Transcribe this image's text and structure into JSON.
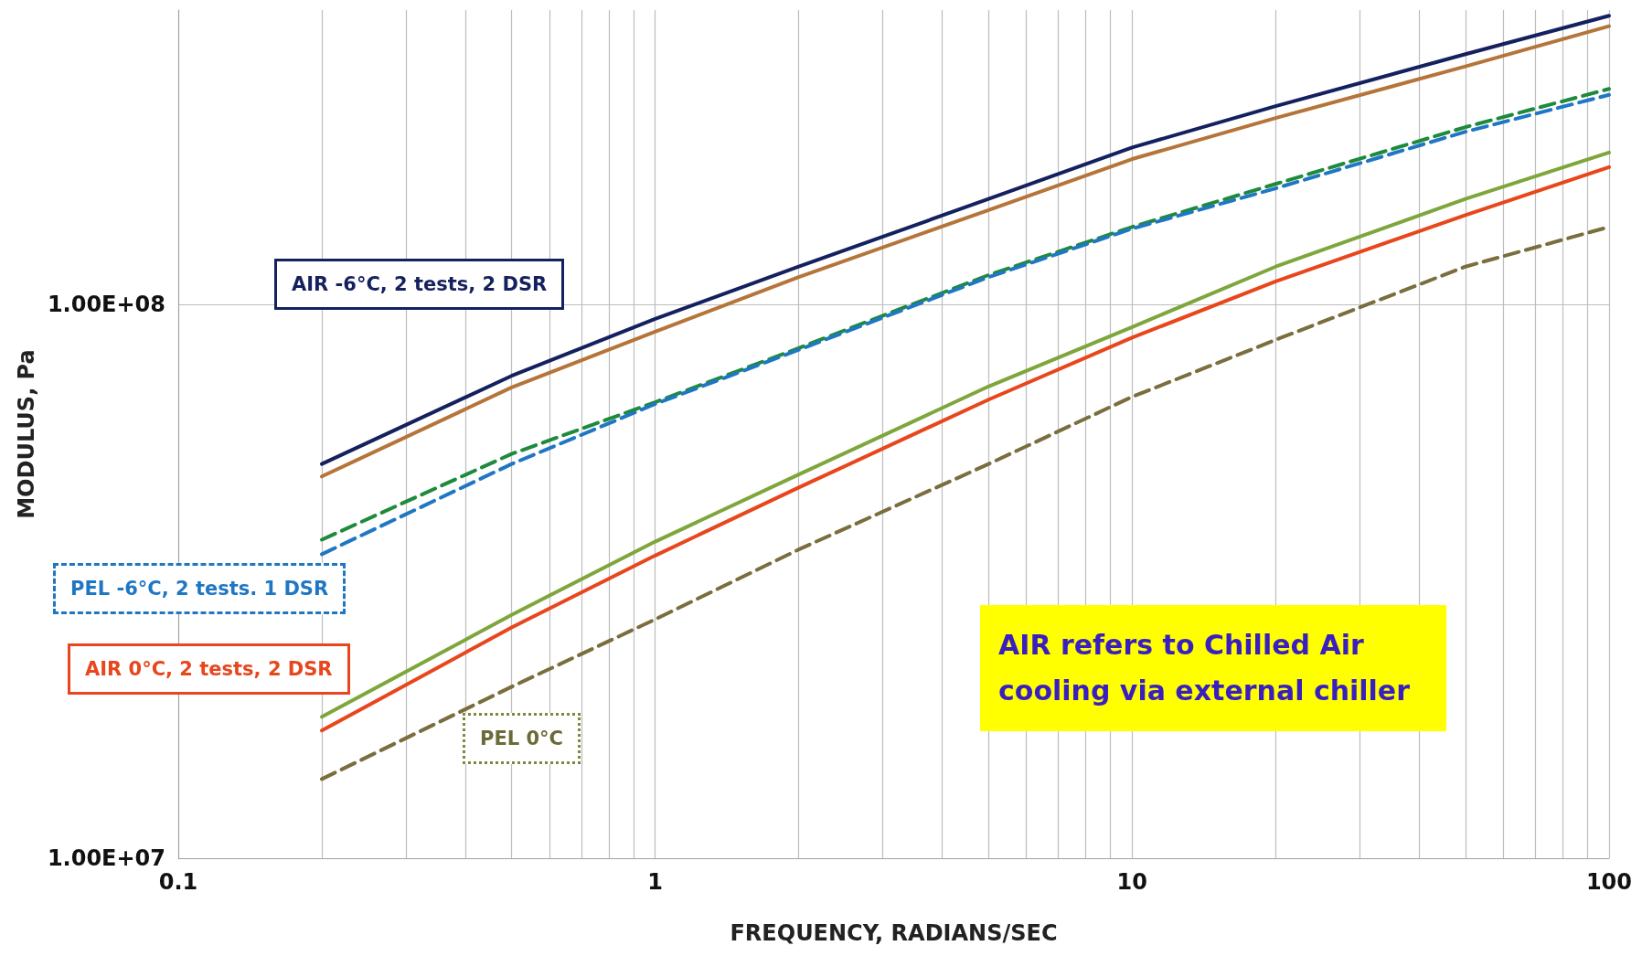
{
  "chart_data": {
    "type": "line",
    "xlabel": "FREQUENCY, RADIANS/SEC",
    "ylabel": "MODULUS, Pa",
    "log": "xy",
    "grid": true,
    "marker": "none",
    "xlim": [
      0.1,
      100
    ],
    "ylim": [
      10000000,
      340000000
    ],
    "xticks": [
      0.1,
      {
        "value": 0.2,
        "label": null
      },
      {
        "value": 0.3,
        "label": null
      },
      {
        "value": 0.4,
        "label": null
      },
      {
        "value": 0.5,
        "label": null
      },
      {
        "value": 0.6,
        "label": null
      },
      {
        "value": 0.7,
        "label": null
      },
      {
        "value": 0.8,
        "label": null
      },
      {
        "value": 0.9,
        "label": null
      },
      1,
      {
        "value": 2,
        "label": null
      },
      {
        "value": 3,
        "label": null
      },
      {
        "value": 4,
        "label": null
      },
      {
        "value": 5,
        "label": null
      },
      {
        "value": 6,
        "label": null
      },
      {
        "value": 7,
        "label": null
      },
      {
        "value": 8,
        "label": null
      },
      {
        "value": 9,
        "label": null
      },
      10,
      {
        "value": 20,
        "label": null
      },
      {
        "value": 30,
        "label": null
      },
      {
        "value": 40,
        "label": null
      },
      {
        "value": 50,
        "label": null
      },
      {
        "value": 60,
        "label": null
      },
      {
        "value": 70,
        "label": null
      },
      {
        "value": 80,
        "label": null
      },
      {
        "value": 90,
        "label": null
      },
      100
    ],
    "yticks": [
      {
        "value": 10000000,
        "label": "1.00E+07"
      },
      {
        "value": 100000000,
        "label": "1.00E+08"
      }
    ],
    "x": [
      0.2,
      0.5,
      1,
      2,
      5,
      10,
      20,
      50,
      100
    ],
    "series": [
      {
        "color": "#15215e",
        "line_style": "solid",
        "values": [
          51500000,
          74300000,
          94200000,
          117000000,
          155000000,
          192000000,
          228000000,
          283000000,
          332000000
        ]
      },
      {
        "color": "#b5753a",
        "line_style": "solid",
        "values": [
          48900000,
          70800000,
          89300000,
          112000000,
          148000000,
          183000000,
          217000000,
          269000000,
          318000000
        ]
      },
      {
        "color": "#1e8a3c",
        "line_style": "dashed",
        "values": [
          37600000,
          53700000,
          66600000,
          83400000,
          113000000,
          138000000,
          165000000,
          209000000,
          245000000
        ]
      },
      {
        "color": "#1f77c4",
        "line_style": "dashed",
        "values": [
          35400000,
          51500000,
          66100000,
          82800000,
          112000000,
          137000000,
          162000000,
          205000000,
          239000000
        ]
      },
      {
        "color": "#7ea63c",
        "line_style": "solid",
        "values": [
          18000000,
          27500000,
          37300000,
          49300000,
          71100000,
          91000000,
          117000000,
          155000000,
          188000000
        ]
      },
      {
        "color": "#e8461c",
        "line_style": "solid",
        "values": [
          17000000,
          26100000,
          35200000,
          46700000,
          67300000,
          87100000,
          110000000,
          145000000,
          177000000
        ]
      },
      {
        "color": "#7a6e3e",
        "line_style": "dashed",
        "values": [
          13900000,
          20400000,
          27000000,
          36100000,
          51500000,
          68100000,
          86300000,
          117000000,
          138000000
        ]
      }
    ],
    "annotations": [
      "AIR -6°C, 2 tests, 2 DSR",
      "PEL -6°C, 2 tests. 1 DSR",
      "AIR 0°C, 2 tests, 2 DSR",
      "PEL 0°C",
      "AIR refers to Chilled Air\ncooling via external chiller"
    ]
  }
}
